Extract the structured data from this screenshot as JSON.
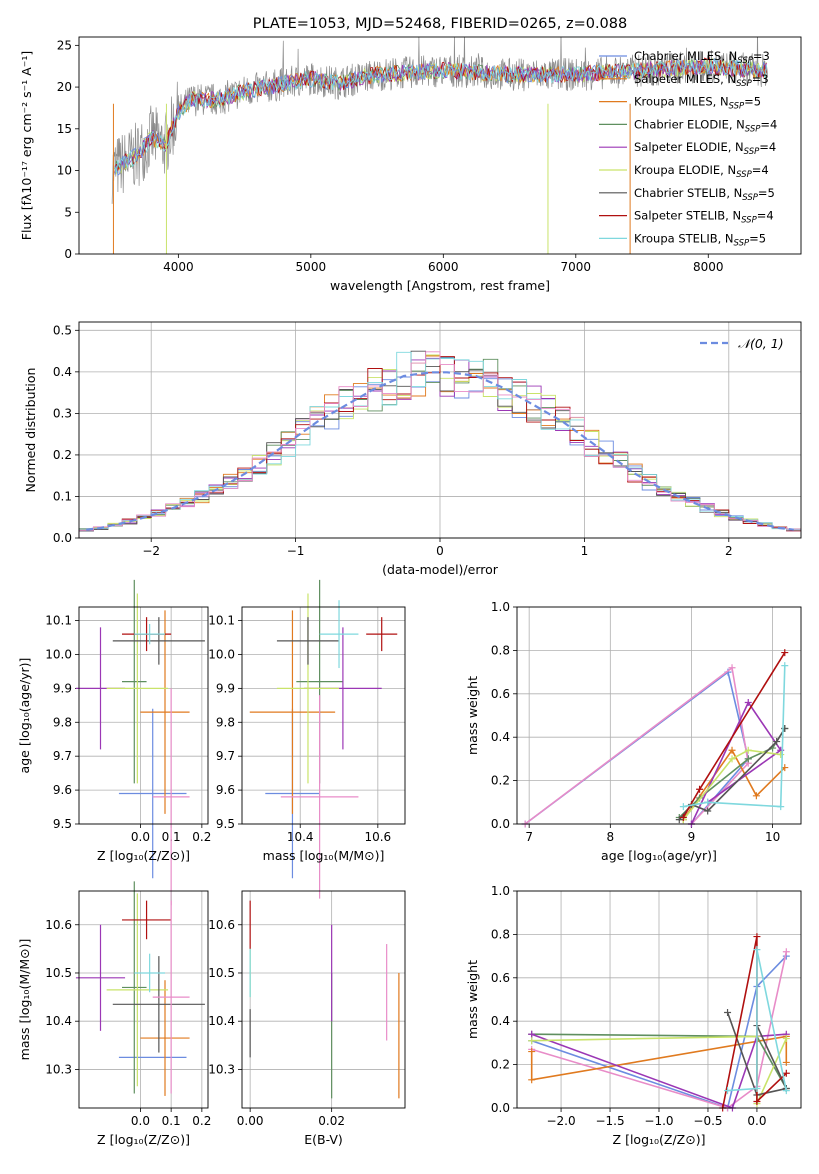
{
  "colors": [
    "#6c8ce0",
    "#e07a1f",
    "#5f8f5f",
    "#9b37b5",
    "#c9e36a",
    "#555555",
    "#b01010",
    "#7fd8de",
    "#e88cc8",
    "#8c8c8c"
  ],
  "chart_data": [
    {
      "type": "line",
      "title": "PLATE=1053, MJD=52468, FIBERID=0265, z=0.088",
      "xlabel": "wavelength [Angstrom, rest frame]",
      "ylabel": "Flux [fλ10⁻¹⁷ erg cm⁻² s⁻¹ A⁻¹]",
      "xlim": [
        3250,
        8700
      ],
      "ylim": [
        0,
        26
      ],
      "xticks": [
        4000,
        5000,
        6000,
        7000,
        8000
      ],
      "yticks": [
        0,
        5,
        10,
        15,
        20,
        25
      ],
      "legend_position": "right",
      "legend": [
        {
          "label": "Chabrier MILES, N",
          "sub": "SSP",
          "suffix": "=3"
        },
        {
          "label": "Salpeter MILES, N",
          "sub": "SSP",
          "suffix": "=3"
        },
        {
          "label": "Kroupa MILES, N",
          "sub": "SSP",
          "suffix": "=5"
        },
        {
          "label": "Chabrier ELODIE, N",
          "sub": "SSP",
          "suffix": "=4"
        },
        {
          "label": "Salpeter ELODIE, N",
          "sub": "SSP",
          "suffix": "=4"
        },
        {
          "label": "Kroupa ELODIE, N",
          "sub": "SSP",
          "suffix": "=4"
        },
        {
          "label": "Chabrier STELIB, N",
          "sub": "SSP",
          "suffix": "=5"
        },
        {
          "label": "Salpeter STELIB, N",
          "sub": "SSP",
          "suffix": "=4"
        },
        {
          "label": "Kroupa STELIB, N",
          "sub": "SSP",
          "suffix": "=5"
        }
      ],
      "legend_colors": [
        0,
        1,
        1,
        2,
        3,
        4,
        5,
        6,
        7
      ],
      "spectrum_envelope": [
        [
          3500,
          10
        ],
        [
          3700,
          12
        ],
        [
          3800,
          14
        ],
        [
          3900,
          13
        ],
        [
          4000,
          17
        ],
        [
          4100,
          18.5
        ],
        [
          4300,
          18.5
        ],
        [
          4500,
          19.5
        ],
        [
          5000,
          21
        ],
        [
          5200,
          20.5
        ],
        [
          5500,
          21.5
        ],
        [
          6000,
          22
        ],
        [
          6500,
          21.5
        ],
        [
          7000,
          21.5
        ],
        [
          7500,
          22
        ],
        [
          8000,
          22.5
        ],
        [
          8400,
          22
        ]
      ]
    },
    {
      "type": "step",
      "title": "",
      "xlabel": "(data-model)/error",
      "ylabel": "Normed distribution",
      "xlim": [
        -2.5,
        2.5
      ],
      "ylim": [
        0,
        0.52
      ],
      "xticks": [
        -2,
        -1,
        0,
        1,
        2
      ],
      "xticklabels": [
        "−2",
        "−1",
        "0",
        "1",
        "2"
      ],
      "yticks": [
        0,
        0.1,
        0.2,
        0.3,
        0.4,
        0.5
      ],
      "yticklabels": [
        "0.0",
        "0.1",
        "0.2",
        "0.3",
        "0.4",
        "0.5"
      ],
      "legend": [
        {
          "label": "𝒩(0, 1)"
        }
      ],
      "legend_position": "upper right",
      "grid": true,
      "bin_centers": [
        -2.45,
        -2.35,
        -2.25,
        -2.15,
        -2.05,
        -1.95,
        -1.85,
        -1.75,
        -1.65,
        -1.55,
        -1.45,
        -1.35,
        -1.25,
        -1.15,
        -1.05,
        -0.95,
        -0.85,
        -0.75,
        -0.65,
        -0.55,
        -0.45,
        -0.35,
        -0.25,
        -0.15,
        -0.05,
        0.05,
        0.15,
        0.25,
        0.35,
        0.45,
        0.55,
        0.65,
        0.75,
        0.85,
        0.95,
        1.05,
        1.15,
        1.25,
        1.35,
        1.45,
        1.55,
        1.65,
        1.75,
        1.85,
        1.95,
        2.05,
        2.15,
        2.25,
        2.35,
        2.45
      ],
      "gauss_values": [
        0.02,
        0.024,
        0.032,
        0.04,
        0.049,
        0.06,
        0.072,
        0.086,
        0.1,
        0.116,
        0.135,
        0.155,
        0.18,
        0.205,
        0.23,
        0.255,
        0.28,
        0.3,
        0.32,
        0.34,
        0.36,
        0.375,
        0.39,
        0.395,
        0.399,
        0.399,
        0.395,
        0.39,
        0.375,
        0.36,
        0.34,
        0.32,
        0.3,
        0.28,
        0.255,
        0.23,
        0.205,
        0.18,
        0.155,
        0.135,
        0.116,
        0.1,
        0.086,
        0.072,
        0.06,
        0.049,
        0.04,
        0.032,
        0.024,
        0.02
      ]
    },
    {
      "type": "scatter",
      "xlabel": "Z [log₁₀(Z/Z⊙)]",
      "ylabel": "age  [log₁₀(age/yr)]",
      "xlim": [
        -0.2,
        0.22
      ],
      "ylim": [
        9.5,
        10.14
      ],
      "xticks": [
        0,
        0.1,
        0.2
      ],
      "xticklabels": [
        "0.0",
        "0.1",
        "0.2"
      ],
      "yticks": [
        9.5,
        9.6,
        9.7,
        9.8,
        9.9,
        10.0,
        10.1
      ],
      "yticklabels": [
        "9.5",
        "9.6",
        "9.7",
        "9.8",
        "9.9",
        "10.0",
        "10.1"
      ],
      "grid": true,
      "points": [
        {
          "x": 0.04,
          "y": 9.59,
          "xerr": 0.11,
          "yerr": 0.25,
          "c": 0
        },
        {
          "x": 0.08,
          "y": 9.83,
          "xerr": 0.08,
          "yerr": 0.3,
          "c": 1
        },
        {
          "x": -0.02,
          "y": 9.92,
          "xerr": 0.04,
          "yerr": 0.3,
          "c": 2
        },
        {
          "x": -0.13,
          "y": 9.9,
          "xerr": 0.08,
          "yerr": 0.18,
          "c": 3
        },
        {
          "x": -0.01,
          "y": 9.9,
          "xerr": 0.1,
          "yerr": 0.28,
          "c": 4
        },
        {
          "x": 0.06,
          "y": 10.04,
          "xerr": 0.15,
          "yerr": 0.07,
          "c": 5
        },
        {
          "x": 0.02,
          "y": 10.06,
          "xerr": 0.08,
          "yerr": 0.05,
          "c": 6
        },
        {
          "x": 0.03,
          "y": 10.06,
          "xerr": 0.05,
          "yerr": 0.03,
          "c": 7
        },
        {
          "x": 0.1,
          "y": 9.58,
          "xerr": 0.06,
          "yerr": 0.32,
          "c": 8
        }
      ]
    },
    {
      "type": "scatter",
      "xlabel": "mass [log₁₀(M/M⊙)]",
      "ylabel": "",
      "xlim": [
        10.25,
        10.67
      ],
      "ylim": [
        9.5,
        10.14
      ],
      "xticks": [
        10.4,
        10.6
      ],
      "xticklabels": [
        "10.4",
        "10.6"
      ],
      "yticks": [
        9.5,
        9.6,
        9.7,
        9.8,
        9.9,
        10.0,
        10.1
      ],
      "yticklabels": [
        "9.5",
        "9.6",
        "9.7",
        "9.8",
        "9.9",
        "10.0",
        "10.1"
      ],
      "grid": true,
      "points": [
        {
          "x": 10.38,
          "y": 9.59,
          "xerr": 0.07,
          "yerr": 0.25,
          "c": 0
        },
        {
          "x": 10.38,
          "y": 9.83,
          "xerr": 0.11,
          "yerr": 0.3,
          "c": 1
        },
        {
          "x": 10.45,
          "y": 9.92,
          "xerr": 0.06,
          "yerr": 0.3,
          "c": 2
        },
        {
          "x": 10.51,
          "y": 9.9,
          "xerr": 0.1,
          "yerr": 0.18,
          "c": 3
        },
        {
          "x": 10.42,
          "y": 9.9,
          "xerr": 0.08,
          "yerr": 0.28,
          "c": 4
        },
        {
          "x": 10.42,
          "y": 10.04,
          "xerr": 0.08,
          "yerr": 0.07,
          "c": 5
        },
        {
          "x": 10.61,
          "y": 10.06,
          "xerr": 0.04,
          "yerr": 0.05,
          "c": 6
        },
        {
          "x": 10.5,
          "y": 10.06,
          "xerr": 0.05,
          "yerr": 0.1,
          "c": 7
        },
        {
          "x": 10.45,
          "y": 9.58,
          "xerr": 0.1,
          "yerr": 0.3,
          "c": 8
        }
      ]
    },
    {
      "type": "line",
      "xlabel": "age  [log₁₀(age/yr)]",
      "ylabel": "mass weight",
      "xlim": [
        6.85,
        10.35
      ],
      "ylim": [
        0,
        1
      ],
      "xticks": [
        7,
        8,
        9,
        10
      ],
      "xticklabels": [
        "7",
        "8",
        "9",
        "10"
      ],
      "yticks": [
        0,
        0.2,
        0.4,
        0.6,
        0.8,
        1.0
      ],
      "yticklabels": [
        "0.0",
        "0.2",
        "0.4",
        "0.6",
        "0.8",
        "1.0"
      ],
      "grid": true,
      "series": [
        {
          "c": 0,
          "x": [
            6.95,
            9.45,
            9.7,
            9.0
          ],
          "y": [
            0.0,
            0.7,
            0.3,
            0.0
          ]
        },
        {
          "c": 8,
          "x": [
            6.95,
            9.5,
            9.7,
            9.0
          ],
          "y": [
            0.0,
            0.72,
            0.28,
            0.0
          ]
        },
        {
          "c": 1,
          "x": [
            8.9,
            9.5,
            9.8,
            10.15
          ],
          "y": [
            0.02,
            0.34,
            0.13,
            0.26
          ]
        },
        {
          "c": 2,
          "x": [
            8.85,
            9.1,
            9.7,
            10.0,
            10.15
          ],
          "y": [
            0.03,
            0.12,
            0.3,
            0.35,
            0.44
          ]
        },
        {
          "c": 3,
          "x": [
            9.0,
            9.7,
            10.1,
            9.2
          ],
          "y": [
            0.0,
            0.56,
            0.34,
            0.1
          ]
        },
        {
          "c": 4,
          "x": [
            8.9,
            9.5,
            9.7,
            10.1
          ],
          "y": [
            0.02,
            0.3,
            0.34,
            0.32
          ]
        },
        {
          "c": 5,
          "x": [
            8.85,
            9.0,
            9.2,
            10.05,
            10.15
          ],
          "y": [
            0.02,
            0.09,
            0.06,
            0.38,
            0.44
          ]
        },
        {
          "c": 6,
          "x": [
            8.9,
            9.1,
            10.15
          ],
          "y": [
            0.03,
            0.16,
            0.79
          ]
        },
        {
          "c": 7,
          "x": [
            8.9,
            9.2,
            10.1,
            10.15
          ],
          "y": [
            0.08,
            0.1,
            0.08,
            0.73
          ]
        }
      ]
    },
    {
      "type": "scatter",
      "xlabel": "Z [log₁₀(Z/Z⊙)]",
      "ylabel": "mass [log₁₀(M/M⊙)]",
      "xlim": [
        -0.2,
        0.22
      ],
      "ylim": [
        10.22,
        10.67
      ],
      "xticks": [
        0,
        0.1,
        0.2
      ],
      "xticklabels": [
        "0.0",
        "0.1",
        "0.2"
      ],
      "yticks": [
        10.3,
        10.4,
        10.5,
        10.6
      ],
      "yticklabels": [
        "10.3",
        "10.4",
        "10.5",
        "10.6"
      ],
      "grid": true,
      "points": [
        {
          "x": 0.04,
          "y": 10.325,
          "xerr": 0.11,
          "yerr": 0.0,
          "c": 0
        },
        {
          "x": 0.08,
          "y": 10.365,
          "xerr": 0.08,
          "yerr": 0.12,
          "c": 1
        },
        {
          "x": -0.02,
          "y": 10.47,
          "xerr": 0.04,
          "yerr": 0.22,
          "c": 2
        },
        {
          "x": -0.13,
          "y": 10.49,
          "xerr": 0.08,
          "yerr": 0.11,
          "c": 3
        },
        {
          "x": -0.01,
          "y": 10.465,
          "xerr": 0.1,
          "yerr": 0.2,
          "c": 4
        },
        {
          "x": 0.06,
          "y": 10.435,
          "xerr": 0.15,
          "yerr": 0.1,
          "c": 5
        },
        {
          "x": 0.02,
          "y": 10.61,
          "xerr": 0.08,
          "yerr": 0.04,
          "c": 6
        },
        {
          "x": 0.03,
          "y": 10.5,
          "xerr": 0.05,
          "yerr": 0.04,
          "c": 7
        },
        {
          "x": 0.1,
          "y": 10.45,
          "xerr": 0.06,
          "yerr": 0.2,
          "c": 8
        }
      ]
    },
    {
      "type": "scatter",
      "xlabel": "E(B-V)",
      "ylabel": "",
      "xlim": [
        -0.002,
        0.038
      ],
      "ylim": [
        10.22,
        10.67
      ],
      "xticks": [
        0,
        0.02
      ],
      "xticklabels": [
        "0.00",
        "0.02"
      ],
      "yticks": [
        10.3,
        10.4,
        10.5,
        10.6
      ],
      "yticklabels": [
        "10.3",
        "10.4",
        "10.5",
        "10.6"
      ],
      "grid": true,
      "points": [
        {
          "x": 0.0,
          "y": 10.325,
          "yerr": 0.0,
          "c": 0
        },
        {
          "x": 0.0365,
          "y": 10.37,
          "yerr": 0.13,
          "c": 1
        },
        {
          "x": 0.02,
          "y": 10.37,
          "yerr": 0.13,
          "c": 2
        },
        {
          "x": 0.02,
          "y": 10.5,
          "yerr": 0.1,
          "c": 3
        },
        {
          "x": 0.0,
          "y": 10.5,
          "yerr": 0.05,
          "c": 4
        },
        {
          "x": 0.0,
          "y": 10.375,
          "yerr": 0.05,
          "c": 5
        },
        {
          "x": 0.0,
          "y": 10.6,
          "yerr": 0.05,
          "c": 6
        },
        {
          "x": 0.0,
          "y": 10.5,
          "yerr": 0.05,
          "c": 7
        },
        {
          "x": 0.0335,
          "y": 10.46,
          "yerr": 0.1,
          "c": 8
        }
      ]
    },
    {
      "type": "line",
      "xlabel": "Z [log₁₀(Z/Z⊙)]",
      "ylabel": "mass weight",
      "xlim": [
        -2.45,
        0.45
      ],
      "ylim": [
        0,
        1
      ],
      "xticks": [
        -2.0,
        -1.5,
        -1.0,
        -0.5,
        0.0
      ],
      "xticklabels": [
        "−2.0",
        "−1.5",
        "−1.0",
        "−0.5",
        "0.0"
      ],
      "yticks": [
        0,
        0.2,
        0.4,
        0.6,
        0.8,
        1.0
      ],
      "yticklabels": [
        "0.0",
        "0.2",
        "0.4",
        "0.6",
        "0.8",
        "1.0"
      ],
      "grid": true,
      "series": [
        {
          "c": 0,
          "x": [
            -2.3,
            -0.3,
            0.0,
            0.3
          ],
          "y": [
            0.31,
            0.0,
            0.56,
            0.7
          ]
        },
        {
          "c": 8,
          "x": [
            -2.3,
            -0.3,
            0.0,
            0.3
          ],
          "y": [
            0.27,
            0.0,
            0.1,
            0.72
          ]
        },
        {
          "c": 1,
          "x": [
            -2.3,
            -2.3,
            0.3,
            0.3
          ],
          "y": [
            0.26,
            0.13,
            0.33,
            0.21
          ]
        },
        {
          "c": 2,
          "x": [
            -2.3,
            0.0,
            0.3
          ],
          "y": [
            0.34,
            0.33,
            0.09
          ]
        },
        {
          "c": 3,
          "x": [
            -2.3,
            -0.25,
            0.0,
            0.3
          ],
          "y": [
            0.34,
            0.0,
            0.33,
            0.34
          ]
        },
        {
          "c": 4,
          "x": [
            -2.3,
            0.0,
            0.0,
            0.3
          ],
          "y": [
            0.31,
            0.33,
            0.02,
            0.32
          ]
        },
        {
          "c": 5,
          "x": [
            -0.3,
            0.0,
            0.3,
            0.0
          ],
          "y": [
            0.44,
            0.06,
            0.09,
            0.38
          ]
        },
        {
          "c": 6,
          "x": [
            -0.35,
            0.0,
            0.0,
            0.3
          ],
          "y": [
            0.0,
            0.79,
            0.03,
            0.16
          ]
        },
        {
          "c": 7,
          "x": [
            -0.3,
            0.0,
            0.0,
            0.3
          ],
          "y": [
            0.08,
            0.09,
            0.73,
            0.08
          ]
        }
      ]
    }
  ]
}
